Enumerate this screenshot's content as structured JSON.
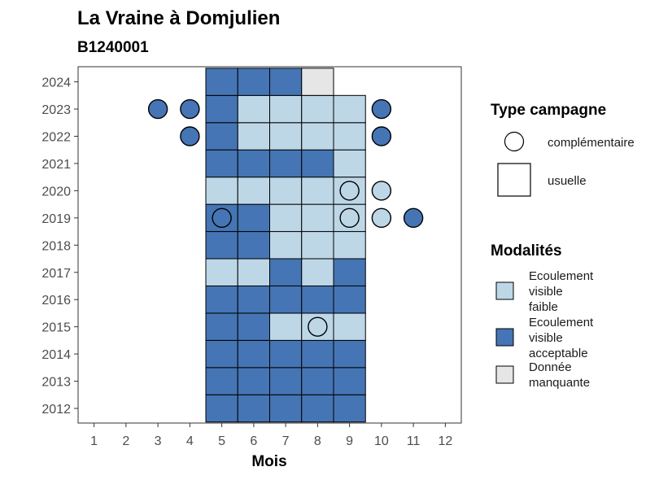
{
  "chart_data": {
    "type": "heatmap",
    "title": "La Vraine à Domjulien",
    "subtitle": "B1240001",
    "xlabel": "Mois",
    "ylabel": "",
    "x_ticks": [
      1,
      2,
      3,
      4,
      5,
      6,
      7,
      8,
      9,
      10,
      11,
      12
    ],
    "y_ticks": [
      2012,
      2013,
      2014,
      2015,
      2016,
      2017,
      2018,
      2019,
      2020,
      2021,
      2022,
      2023,
      2024
    ],
    "grid": false,
    "colors": {
      "faible": "#bdd7e7",
      "acceptable": "#4575b4",
      "manquante": "#e6e6e6",
      "outline": "#000000",
      "axis_text": "#4d4d4d"
    },
    "legend_type": {
      "title": "Type campagne",
      "position": "right",
      "entries": [
        {
          "key": "complementaire",
          "shape": "circle",
          "label": "complémentaire"
        },
        {
          "key": "usuelle",
          "shape": "square",
          "label": "usuelle"
        }
      ]
    },
    "legend_mod": {
      "title": "Modalités",
      "position": "right",
      "entries": [
        {
          "key": "faible",
          "lines": [
            "Ecoulement",
            "visible",
            "faible"
          ]
        },
        {
          "key": "acceptable",
          "lines": [
            "Ecoulement",
            "visible",
            "acceptable"
          ]
        },
        {
          "key": "manquante",
          "lines": [
            "Donnée",
            "manquante"
          ]
        }
      ]
    },
    "usuelle": [
      {
        "year": 2012,
        "month": 5,
        "value": "acceptable"
      },
      {
        "year": 2012,
        "month": 6,
        "value": "acceptable"
      },
      {
        "year": 2012,
        "month": 7,
        "value": "acceptable"
      },
      {
        "year": 2012,
        "month": 8,
        "value": "acceptable"
      },
      {
        "year": 2012,
        "month": 9,
        "value": "acceptable"
      },
      {
        "year": 2013,
        "month": 5,
        "value": "acceptable"
      },
      {
        "year": 2013,
        "month": 6,
        "value": "acceptable"
      },
      {
        "year": 2013,
        "month": 7,
        "value": "acceptable"
      },
      {
        "year": 2013,
        "month": 8,
        "value": "acceptable"
      },
      {
        "year": 2013,
        "month": 9,
        "value": "acceptable"
      },
      {
        "year": 2014,
        "month": 5,
        "value": "acceptable"
      },
      {
        "year": 2014,
        "month": 6,
        "value": "acceptable"
      },
      {
        "year": 2014,
        "month": 7,
        "value": "acceptable"
      },
      {
        "year": 2014,
        "month": 8,
        "value": "acceptable"
      },
      {
        "year": 2014,
        "month": 9,
        "value": "acceptable"
      },
      {
        "year": 2015,
        "month": 5,
        "value": "acceptable"
      },
      {
        "year": 2015,
        "month": 6,
        "value": "acceptable"
      },
      {
        "year": 2015,
        "month": 7,
        "value": "faible"
      },
      {
        "year": 2015,
        "month": 8,
        "value": "faible"
      },
      {
        "year": 2015,
        "month": 9,
        "value": "faible"
      },
      {
        "year": 2016,
        "month": 5,
        "value": "acceptable"
      },
      {
        "year": 2016,
        "month": 6,
        "value": "acceptable"
      },
      {
        "year": 2016,
        "month": 7,
        "value": "acceptable"
      },
      {
        "year": 2016,
        "month": 8,
        "value": "acceptable"
      },
      {
        "year": 2016,
        "month": 9,
        "value": "acceptable"
      },
      {
        "year": 2017,
        "month": 5,
        "value": "faible"
      },
      {
        "year": 2017,
        "month": 6,
        "value": "faible"
      },
      {
        "year": 2017,
        "month": 7,
        "value": "acceptable"
      },
      {
        "year": 2017,
        "month": 8,
        "value": "faible"
      },
      {
        "year": 2017,
        "month": 9,
        "value": "acceptable"
      },
      {
        "year": 2018,
        "month": 5,
        "value": "acceptable"
      },
      {
        "year": 2018,
        "month": 6,
        "value": "acceptable"
      },
      {
        "year": 2018,
        "month": 7,
        "value": "faible"
      },
      {
        "year": 2018,
        "month": 8,
        "value": "faible"
      },
      {
        "year": 2018,
        "month": 9,
        "value": "faible"
      },
      {
        "year": 2019,
        "month": 5,
        "value": "acceptable"
      },
      {
        "year": 2019,
        "month": 6,
        "value": "acceptable"
      },
      {
        "year": 2019,
        "month": 7,
        "value": "faible"
      },
      {
        "year": 2019,
        "month": 8,
        "value": "faible"
      },
      {
        "year": 2019,
        "month": 9,
        "value": "faible"
      },
      {
        "year": 2020,
        "month": 5,
        "value": "faible"
      },
      {
        "year": 2020,
        "month": 6,
        "value": "faible"
      },
      {
        "year": 2020,
        "month": 7,
        "value": "faible"
      },
      {
        "year": 2020,
        "month": 8,
        "value": "faible"
      },
      {
        "year": 2020,
        "month": 9,
        "value": "faible"
      },
      {
        "year": 2021,
        "month": 5,
        "value": "acceptable"
      },
      {
        "year": 2021,
        "month": 6,
        "value": "acceptable"
      },
      {
        "year": 2021,
        "month": 7,
        "value": "acceptable"
      },
      {
        "year": 2021,
        "month": 8,
        "value": "acceptable"
      },
      {
        "year": 2021,
        "month": 9,
        "value": "faible"
      },
      {
        "year": 2022,
        "month": 5,
        "value": "acceptable"
      },
      {
        "year": 2022,
        "month": 6,
        "value": "faible"
      },
      {
        "year": 2022,
        "month": 7,
        "value": "faible"
      },
      {
        "year": 2022,
        "month": 8,
        "value": "faible"
      },
      {
        "year": 2022,
        "month": 9,
        "value": "faible"
      },
      {
        "year": 2023,
        "month": 5,
        "value": "acceptable"
      },
      {
        "year": 2023,
        "month": 6,
        "value": "faible"
      },
      {
        "year": 2023,
        "month": 7,
        "value": "faible"
      },
      {
        "year": 2023,
        "month": 8,
        "value": "faible"
      },
      {
        "year": 2023,
        "month": 9,
        "value": "faible"
      },
      {
        "year": 2024,
        "month": 5,
        "value": "acceptable"
      },
      {
        "year": 2024,
        "month": 6,
        "value": "acceptable"
      },
      {
        "year": 2024,
        "month": 7,
        "value": "acceptable"
      },
      {
        "year": 2024,
        "month": 8,
        "value": "manquante"
      }
    ],
    "complementaire": [
      {
        "year": 2023,
        "month": 3,
        "value": "acceptable"
      },
      {
        "year": 2023,
        "month": 4,
        "value": "acceptable"
      },
      {
        "year": 2023,
        "month": 10,
        "value": "acceptable"
      },
      {
        "year": 2022,
        "month": 4,
        "value": "acceptable"
      },
      {
        "year": 2022,
        "month": 10,
        "value": "acceptable"
      },
      {
        "year": 2020,
        "month": 9,
        "value": "faible"
      },
      {
        "year": 2020,
        "month": 10,
        "value": "faible"
      },
      {
        "year": 2019,
        "month": 5,
        "value": "acceptable"
      },
      {
        "year": 2019,
        "month": 9,
        "value": "faible"
      },
      {
        "year": 2019,
        "month": 10,
        "value": "faible"
      },
      {
        "year": 2019,
        "month": 11,
        "value": "acceptable"
      },
      {
        "year": 2015,
        "month": 8,
        "value": "faible"
      }
    ]
  }
}
